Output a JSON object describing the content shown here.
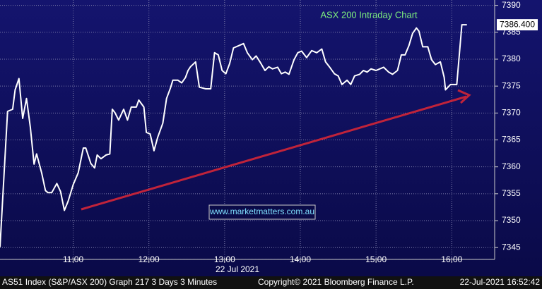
{
  "chart_data": {
    "type": "line",
    "title": "ASX 200 Intraday Chart",
    "annotation": "www.marketmatters.com.au",
    "date_label": "22 Jul 2021",
    "last_value_label": "7386.400",
    "footer": {
      "left": "AS51 Index (S&P/ASX 200) Graph 217 3 Days 3 Minutes",
      "center": "Copyright© 2021 Bloomberg Finance L.P.",
      "right": "22-Jul-2021 16:52:42"
    },
    "xlim": [
      602,
      994
    ],
    "ylim": [
      7342.8,
      7391
    ],
    "xticks": [
      {
        "value": 660,
        "label": "11:00"
      },
      {
        "value": 720,
        "label": "12:00"
      },
      {
        "value": 780,
        "label": "13:00"
      },
      {
        "value": 840,
        "label": "14:00"
      },
      {
        "value": 900,
        "label": "15:00"
      },
      {
        "value": 960,
        "label": "16:00"
      }
    ],
    "yticks": [
      7345,
      7350,
      7355,
      7360,
      7365,
      7370,
      7375,
      7380,
      7385,
      7390
    ],
    "grid": true,
    "series": [
      {
        "color": "#ffffff",
        "x": [
          602,
          608,
          612,
          614,
          617,
          620,
          623,
          626,
          629,
          631,
          635,
          638,
          640,
          643,
          647,
          650,
          653,
          656,
          660,
          664,
          668,
          670,
          674,
          677,
          679,
          682,
          686,
          689,
          691,
          693,
          696,
          700,
          703,
          706,
          710,
          712,
          716,
          718,
          721,
          724,
          727,
          731,
          734,
          737,
          739,
          743,
          746,
          749,
          751,
          753,
          757,
          760,
          765,
          769,
          772,
          775,
          778,
          781,
          784,
          787,
          791,
          795,
          798,
          802,
          805,
          808,
          812,
          815,
          818,
          822,
          825,
          828,
          831,
          835,
          838,
          841,
          845,
          849,
          853,
          857,
          860,
          863,
          867,
          870,
          873,
          877,
          880,
          883,
          887,
          890,
          893,
          896,
          900,
          903,
          906,
          910,
          913,
          917,
          920,
          923,
          926,
          929,
          932,
          934,
          937,
          941,
          944,
          947,
          951,
          954,
          955,
          959,
          964,
          968,
          972
        ],
        "values": [
          7345.1,
          7370.3,
          7370.7,
          7374.3,
          7376.4,
          7369,
          7372.7,
          7367.4,
          7360.5,
          7362.4,
          7358.9,
          7355.6,
          7355.2,
          7355.2,
          7356.9,
          7355.4,
          7351.9,
          7353.6,
          7356.7,
          7358.9,
          7363.5,
          7363.5,
          7360.6,
          7359.8,
          7362.2,
          7361.5,
          7362.2,
          7362.4,
          7370.7,
          7370.1,
          7368.7,
          7370.7,
          7368.7,
          7371.1,
          7371.1,
          7372.4,
          7371.1,
          7366.4,
          7366.1,
          7363,
          7365.5,
          7368.1,
          7372.7,
          7374.6,
          7376.1,
          7376.1,
          7375.6,
          7376.6,
          7377.9,
          7378.6,
          7379.5,
          7374.8,
          7374.5,
          7374.5,
          7381.2,
          7380.8,
          7377.9,
          7377.3,
          7379.2,
          7382.1,
          7382.5,
          7382.9,
          7381.2,
          7379.9,
          7380.6,
          7379.5,
          7377.9,
          7378.6,
          7378.2,
          7378.5,
          7377.3,
          7377.6,
          7377.2,
          7379.9,
          7381.2,
          7381.5,
          7380.3,
          7381.6,
          7381.2,
          7381.9,
          7379.5,
          7378.6,
          7377.3,
          7376.9,
          7375.3,
          7376.1,
          7375.3,
          7376.9,
          7377.2,
          7377.9,
          7377.6,
          7378.2,
          7377.9,
          7378.2,
          7378.5,
          7377.6,
          7377.2,
          7377.9,
          7380.8,
          7380.8,
          7382.5,
          7384.8,
          7385.8,
          7385.2,
          7382.3,
          7382.3,
          7379.9,
          7379,
          7379.5,
          7376.6,
          7374.3,
          7375.3,
          7375.3,
          7386.4,
          7386.4
        ]
      }
    ]
  }
}
